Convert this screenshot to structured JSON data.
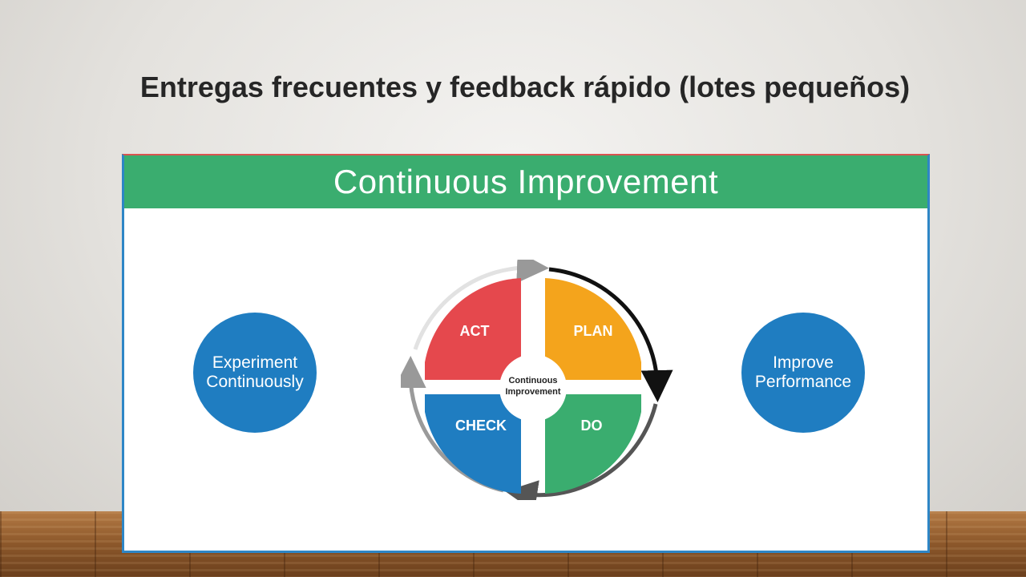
{
  "slide": {
    "title": "Entregas frecuentes y feedback rápido (lotes pequeños)"
  },
  "banner": {
    "title": "Continuous Improvement"
  },
  "left_circle": {
    "label": "Experiment\nContinuously",
    "color": "#1f7dc1"
  },
  "right_circle": {
    "label": "Improve\nPerformance",
    "color": "#1f7dc1"
  },
  "cycle": {
    "center_line1": "Continuous",
    "center_line2": "Improvement",
    "quadrants": [
      {
        "label": "ACT",
        "color": "#e5484d"
      },
      {
        "label": "PLAN",
        "color": "#f4a41c"
      },
      {
        "label": "CHECK",
        "color": "#1f7dc1"
      },
      {
        "label": "DO",
        "color": "#3aad6f"
      }
    ]
  }
}
